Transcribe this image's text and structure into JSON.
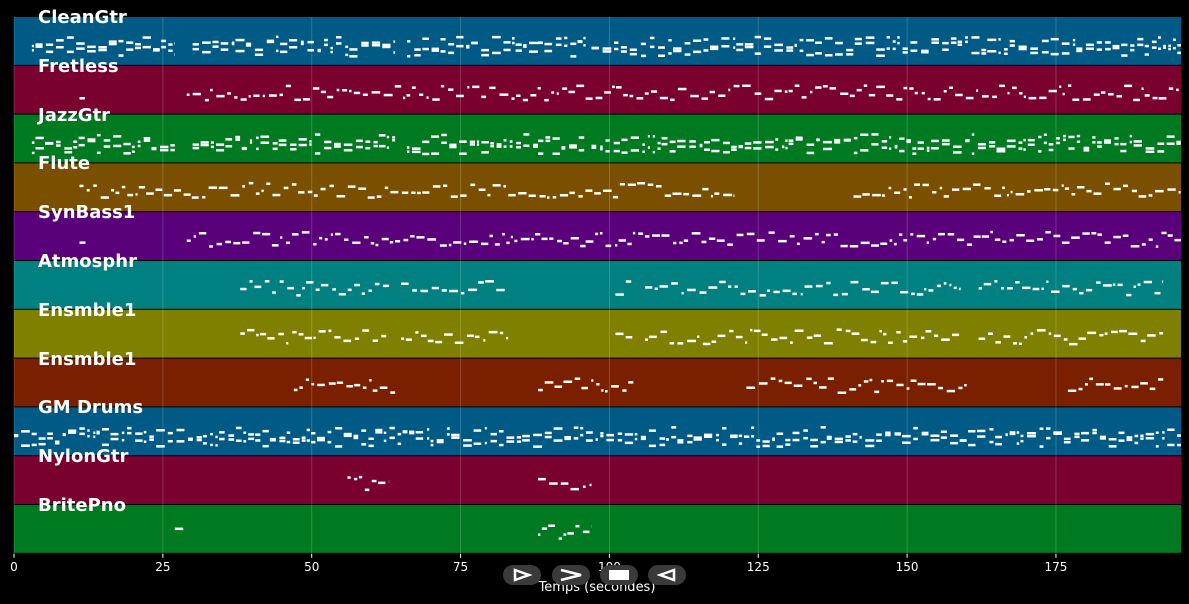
{
  "colors": {
    "background": "#000000",
    "note": "#ffffff",
    "separator": "#1a1a1a"
  },
  "tracks": [
    {
      "name": "CleanGtr",
      "color": "#005a86"
    },
    {
      "name": "Fretless",
      "color": "#7a0030"
    },
    {
      "name": "JazzGtr",
      "color": "#007a20"
    },
    {
      "name": "Flute",
      "color": "#7a5000"
    },
    {
      "name": "SynBass1",
      "color": "#5a007a"
    },
    {
      "name": "Atmosphr",
      "color": "#008080"
    },
    {
      "name": "Ensmble1",
      "color": "#7f7f00"
    },
    {
      "name": "Ensmble1",
      "color": "#7a2000"
    },
    {
      "name": "GM Drums",
      "color": "#005a86"
    },
    {
      "name": "NylonGtr",
      "color": "#7a0030"
    },
    {
      "name": "BritePno",
      "color": "#007a20"
    }
  ],
  "chart_data": {
    "type": "piano-roll",
    "xlabel": "Temps (secondes)",
    "xlim": [
      0,
      196
    ],
    "xticks": [
      0,
      25,
      50,
      75,
      100,
      125,
      150,
      175
    ],
    "xtick_labels": [
      "0",
      "25",
      "50",
      "75",
      "100",
      "125",
      "150",
      "175"
    ],
    "grid": true,
    "activity": [
      [
        [
          3,
          27
        ],
        [
          30,
          64
        ],
        [
          66,
          88
        ],
        [
          88,
          96
        ],
        [
          97,
          196
        ]
      ],
      [
        [
          11,
          12
        ],
        [
          29,
          96
        ],
        [
          96,
          196
        ]
      ],
      [
        [
          3,
          27
        ],
        [
          30,
          64
        ],
        [
          66,
          88
        ],
        [
          88,
          96
        ],
        [
          97,
          196
        ]
      ],
      [
        [
          11,
          121
        ],
        [
          141,
          196
        ]
      ],
      [
        [
          11,
          12
        ],
        [
          29,
          96
        ],
        [
          96,
          196
        ]
      ],
      [
        [
          38,
          63
        ],
        [
          65,
          83
        ],
        [
          101,
          104
        ],
        [
          106,
          159
        ],
        [
          162,
          193
        ]
      ],
      [
        [
          38,
          63
        ],
        [
          65,
          83
        ],
        [
          101,
          104
        ],
        [
          106,
          159
        ],
        [
          162,
          193
        ]
      ],
      [
        [
          47,
          64
        ],
        [
          88,
          104
        ],
        [
          123,
          160
        ],
        [
          177,
          193
        ]
      ],
      [
        [
          0,
          196
        ]
      ],
      [
        [
          56,
          63
        ],
        [
          88,
          97
        ]
      ],
      [
        [
          27,
          29
        ],
        [
          88,
          97
        ]
      ]
    ]
  },
  "controls": [
    {
      "name": "play-button",
      "icon": "play-icon"
    },
    {
      "name": "forward-button",
      "icon": "chevron-right-icon"
    },
    {
      "name": "stop-button",
      "icon": "stop-icon"
    },
    {
      "name": "rewind-button",
      "icon": "rewind-icon"
    }
  ]
}
